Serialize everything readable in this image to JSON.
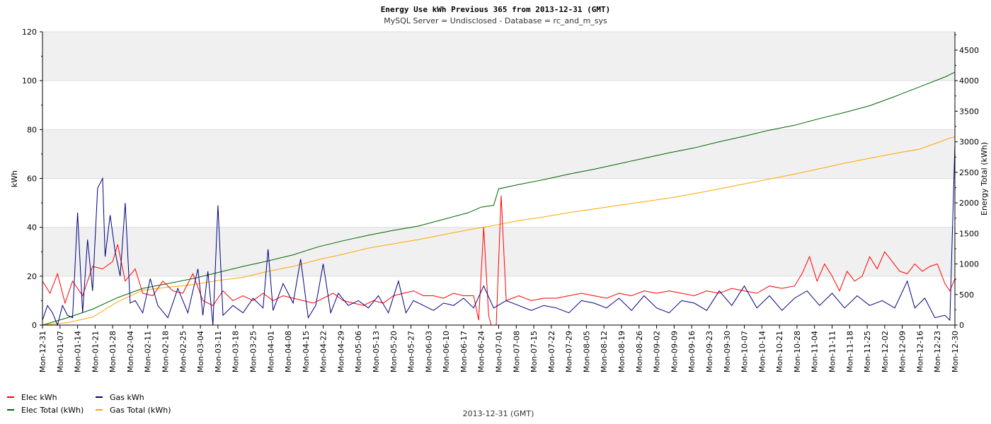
{
  "chart_data": {
    "type": "line",
    "title": "Energy Use kWh Previous 365 from 2013-12-31 (GMT)",
    "subtitle": "MySQL Server = Undisclosed - Database = rc_and_m_sys",
    "footer": "2013-12-31 (GMT)",
    "ylabel": "kWh",
    "y2label": "Energy Total (kWh)",
    "ylim": [
      0,
      120
    ],
    "y2lim": [
      0,
      4800
    ],
    "yticks": [
      0,
      20,
      40,
      60,
      80,
      100,
      120
    ],
    "y2ticks": [
      0,
      500,
      1000,
      1500,
      2000,
      2500,
      3000,
      3500,
      4000,
      4500
    ],
    "xlim": [
      0,
      364
    ],
    "xtick_labels": [
      "Mon-12-31",
      "Mon-01-07",
      "Mon-01-14",
      "Mon-01-21",
      "Mon-01-28",
      "Mon-02-04",
      "Mon-02-11",
      "Mon-02-18",
      "Mon-02-25",
      "Mon-03-04",
      "Mon-03-11",
      "Mon-03-18",
      "Mon-03-25",
      "Mon-04-01",
      "Mon-04-08",
      "Mon-04-15",
      "Mon-04-22",
      "Mon-04-29",
      "Mon-05-06",
      "Mon-05-13",
      "Mon-05-20",
      "Mon-05-27",
      "Mon-06-03",
      "Mon-06-10",
      "Mon-06-17",
      "Mon-06-24",
      "Mon-07-01",
      "Mon-07-08",
      "Mon-07-15",
      "Mon-07-22",
      "Mon-07-29",
      "Mon-08-05",
      "Mon-08-12",
      "Mon-08-19",
      "Mon-08-26",
      "Mon-09-02",
      "Mon-09-09",
      "Mon-09-16",
      "Mon-09-23",
      "Mon-09-30",
      "Mon-10-07",
      "Mon-10-14",
      "Mon-10-21",
      "Mon-10-28",
      "Mon-11-04",
      "Mon-11-11",
      "Mon-11-18",
      "Mon-11-25",
      "Mon-12-02",
      "Mon-12-09",
      "Mon-12-16",
      "Mon-12-23",
      "Mon-12-30"
    ],
    "grid": true,
    "legend_position": "bottom-left",
    "series": [
      {
        "name": "Elec kWh",
        "axis": "left",
        "color": "#ff0000",
        "points": [
          [
            0,
            18
          ],
          [
            3,
            13
          ],
          [
            6,
            21
          ],
          [
            9,
            9
          ],
          [
            12,
            18
          ],
          [
            16,
            12
          ],
          [
            20,
            24
          ],
          [
            24,
            23
          ],
          [
            28,
            26
          ],
          [
            30,
            33
          ],
          [
            33,
            18
          ],
          [
            37,
            23
          ],
          [
            40,
            13
          ],
          [
            44,
            12
          ],
          [
            48,
            18
          ],
          [
            52,
            14
          ],
          [
            56,
            13
          ],
          [
            60,
            21
          ],
          [
            64,
            10
          ],
          [
            68,
            8
          ],
          [
            72,
            14
          ],
          [
            76,
            10
          ],
          [
            80,
            12
          ],
          [
            84,
            10
          ],
          [
            88,
            13
          ],
          [
            92,
            10
          ],
          [
            96,
            12
          ],
          [
            100,
            11
          ],
          [
            104,
            10
          ],
          [
            108,
            9
          ],
          [
            112,
            11
          ],
          [
            116,
            13
          ],
          [
            120,
            10
          ],
          [
            124,
            9
          ],
          [
            128,
            8
          ],
          [
            132,
            10
          ],
          [
            136,
            9
          ],
          [
            140,
            12
          ],
          [
            144,
            13
          ],
          [
            148,
            14
          ],
          [
            152,
            12
          ],
          [
            156,
            12
          ],
          [
            160,
            11
          ],
          [
            164,
            13
          ],
          [
            168,
            12
          ],
          [
            172,
            12
          ],
          [
            174,
            2
          ],
          [
            176,
            40
          ],
          [
            178,
            4
          ],
          [
            179,
            0
          ],
          [
            181,
            0
          ],
          [
            183,
            53
          ],
          [
            185,
            10
          ],
          [
            190,
            12
          ],
          [
            195,
            10
          ],
          [
            200,
            11
          ],
          [
            205,
            11
          ],
          [
            210,
            12
          ],
          [
            215,
            13
          ],
          [
            220,
            12
          ],
          [
            225,
            11
          ],
          [
            230,
            13
          ],
          [
            235,
            12
          ],
          [
            240,
            14
          ],
          [
            245,
            13
          ],
          [
            250,
            14
          ],
          [
            255,
            13
          ],
          [
            260,
            12
          ],
          [
            265,
            14
          ],
          [
            270,
            13
          ],
          [
            275,
            15
          ],
          [
            280,
            14
          ],
          [
            285,
            13
          ],
          [
            290,
            16
          ],
          [
            295,
            15
          ],
          [
            300,
            16
          ],
          [
            303,
            21
          ],
          [
            306,
            28
          ],
          [
            309,
            18
          ],
          [
            312,
            25
          ],
          [
            315,
            20
          ],
          [
            318,
            14
          ],
          [
            321,
            22
          ],
          [
            324,
            18
          ],
          [
            327,
            20
          ],
          [
            330,
            28
          ],
          [
            333,
            23
          ],
          [
            336,
            30
          ],
          [
            339,
            26
          ],
          [
            342,
            22
          ],
          [
            345,
            21
          ],
          [
            348,
            25
          ],
          [
            351,
            22
          ],
          [
            354,
            24
          ],
          [
            357,
            25
          ],
          [
            360,
            17
          ],
          [
            362,
            14
          ],
          [
            364,
            19
          ]
        ]
      },
      {
        "name": "Gas kWh",
        "axis": "left",
        "color": "#000080",
        "points": [
          [
            0,
            2
          ],
          [
            2,
            8
          ],
          [
            4,
            5
          ],
          [
            6,
            0
          ],
          [
            8,
            8
          ],
          [
            10,
            4
          ],
          [
            12,
            3
          ],
          [
            14,
            46
          ],
          [
            16,
            5
          ],
          [
            18,
            35
          ],
          [
            20,
            14
          ],
          [
            22,
            56
          ],
          [
            24,
            60
          ],
          [
            25,
            28
          ],
          [
            27,
            45
          ],
          [
            29,
            30
          ],
          [
            31,
            20
          ],
          [
            33,
            50
          ],
          [
            35,
            9
          ],
          [
            37,
            10
          ],
          [
            40,
            5
          ],
          [
            43,
            19
          ],
          [
            46,
            8
          ],
          [
            50,
            3
          ],
          [
            54,
            15
          ],
          [
            58,
            5
          ],
          [
            62,
            23
          ],
          [
            64,
            4
          ],
          [
            66,
            22
          ],
          [
            68,
            0
          ],
          [
            70,
            49
          ],
          [
            72,
            4
          ],
          [
            76,
            8
          ],
          [
            80,
            5
          ],
          [
            84,
            11
          ],
          [
            88,
            7
          ],
          [
            90,
            31
          ],
          [
            92,
            6
          ],
          [
            96,
            17
          ],
          [
            100,
            9
          ],
          [
            103,
            27
          ],
          [
            106,
            3
          ],
          [
            109,
            8
          ],
          [
            112,
            25
          ],
          [
            115,
            5
          ],
          [
            118,
            13
          ],
          [
            122,
            8
          ],
          [
            126,
            10
          ],
          [
            130,
            7
          ],
          [
            134,
            12
          ],
          [
            138,
            5
          ],
          [
            142,
            18
          ],
          [
            145,
            5
          ],
          [
            148,
            10
          ],
          [
            152,
            8
          ],
          [
            156,
            6
          ],
          [
            160,
            9
          ],
          [
            164,
            8
          ],
          [
            168,
            11
          ],
          [
            172,
            7
          ],
          [
            176,
            16
          ],
          [
            180,
            7
          ],
          [
            185,
            10
          ],
          [
            190,
            8
          ],
          [
            195,
            6
          ],
          [
            200,
            8
          ],
          [
            205,
            7
          ],
          [
            210,
            5
          ],
          [
            215,
            10
          ],
          [
            220,
            9
          ],
          [
            225,
            7
          ],
          [
            230,
            11
          ],
          [
            235,
            6
          ],
          [
            240,
            12
          ],
          [
            245,
            7
          ],
          [
            250,
            5
          ],
          [
            255,
            10
          ],
          [
            260,
            9
          ],
          [
            265,
            6
          ],
          [
            270,
            14
          ],
          [
            275,
            8
          ],
          [
            280,
            16
          ],
          [
            285,
            7
          ],
          [
            290,
            12
          ],
          [
            295,
            6
          ],
          [
            300,
            11
          ],
          [
            305,
            14
          ],
          [
            310,
            8
          ],
          [
            315,
            13
          ],
          [
            320,
            7
          ],
          [
            325,
            12
          ],
          [
            330,
            8
          ],
          [
            335,
            10
          ],
          [
            340,
            7
          ],
          [
            345,
            18
          ],
          [
            348,
            7
          ],
          [
            352,
            11
          ],
          [
            356,
            3
          ],
          [
            360,
            4
          ],
          [
            362,
            2
          ],
          [
            364,
            74
          ]
        ]
      },
      {
        "name": "Elec Total (kWh)",
        "axis": "right",
        "color": "#006400",
        "points": [
          [
            0,
            0
          ],
          [
            10,
            120
          ],
          [
            20,
            260
          ],
          [
            30,
            450
          ],
          [
            40,
            600
          ],
          [
            50,
            680
          ],
          [
            60,
            760
          ],
          [
            70,
            860
          ],
          [
            80,
            960
          ],
          [
            90,
            1050
          ],
          [
            100,
            1150
          ],
          [
            110,
            1280
          ],
          [
            120,
            1380
          ],
          [
            130,
            1470
          ],
          [
            140,
            1550
          ],
          [
            150,
            1620
          ],
          [
            160,
            1730
          ],
          [
            170,
            1840
          ],
          [
            175,
            1930
          ],
          [
            180,
            1960
          ],
          [
            182,
            2230
          ],
          [
            190,
            2300
          ],
          [
            200,
            2380
          ],
          [
            210,
            2470
          ],
          [
            220,
            2550
          ],
          [
            230,
            2640
          ],
          [
            240,
            2730
          ],
          [
            250,
            2820
          ],
          [
            260,
            2900
          ],
          [
            270,
            3000
          ],
          [
            280,
            3090
          ],
          [
            290,
            3190
          ],
          [
            300,
            3270
          ],
          [
            310,
            3380
          ],
          [
            320,
            3480
          ],
          [
            330,
            3590
          ],
          [
            340,
            3740
          ],
          [
            350,
            3900
          ],
          [
            360,
            4060
          ],
          [
            364,
            4140
          ]
        ]
      },
      {
        "name": "Gas Total (kWh)",
        "axis": "right",
        "color": "#ffa500",
        "points": [
          [
            0,
            0
          ],
          [
            10,
            40
          ],
          [
            20,
            130
          ],
          [
            30,
            380
          ],
          [
            40,
            570
          ],
          [
            50,
            620
          ],
          [
            60,
            660
          ],
          [
            70,
            730
          ],
          [
            80,
            780
          ],
          [
            90,
            880
          ],
          [
            100,
            960
          ],
          [
            110,
            1070
          ],
          [
            120,
            1160
          ],
          [
            130,
            1260
          ],
          [
            140,
            1330
          ],
          [
            150,
            1400
          ],
          [
            160,
            1480
          ],
          [
            170,
            1560
          ],
          [
            180,
            1630
          ],
          [
            190,
            1710
          ],
          [
            200,
            1770
          ],
          [
            210,
            1840
          ],
          [
            220,
            1900
          ],
          [
            230,
            1960
          ],
          [
            240,
            2020
          ],
          [
            250,
            2080
          ],
          [
            260,
            2150
          ],
          [
            270,
            2230
          ],
          [
            280,
            2310
          ],
          [
            290,
            2390
          ],
          [
            300,
            2470
          ],
          [
            310,
            2560
          ],
          [
            320,
            2650
          ],
          [
            330,
            2730
          ],
          [
            340,
            2810
          ],
          [
            350,
            2880
          ],
          [
            358,
            3000
          ],
          [
            362,
            3060
          ],
          [
            364,
            3080
          ]
        ]
      }
    ]
  },
  "legend": [
    {
      "label": "Elec kWh",
      "color": "#ff0000"
    },
    {
      "label": "Elec Total (kWh)",
      "color": "#006400"
    },
    {
      "label": "Gas kWh",
      "color": "#000080"
    },
    {
      "label": "Gas Total (kWh)",
      "color": "#ffa500"
    }
  ]
}
